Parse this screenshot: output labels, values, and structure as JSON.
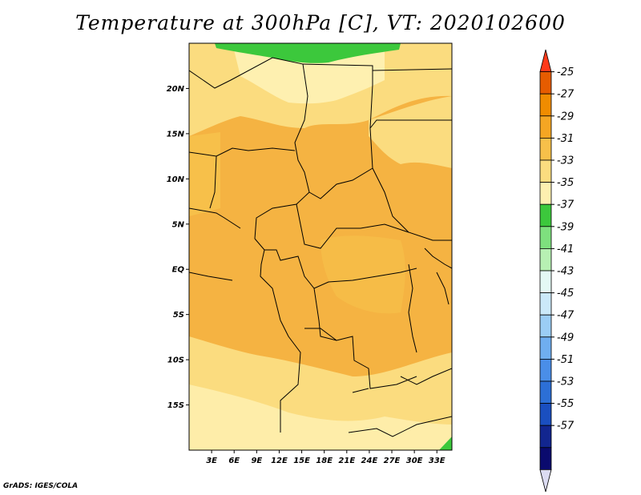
{
  "title": "Temperature at 300hPa [C], VT: 2020102600",
  "credit": "GrADS: IGES/COLA",
  "map": {
    "lon_range": [
      0,
      35
    ],
    "lat_range": [
      -20,
      25
    ],
    "lat_ticks": [
      {
        "value": 20,
        "label": "20N"
      },
      {
        "value": 15,
        "label": "15N"
      },
      {
        "value": 10,
        "label": "10N"
      },
      {
        "value": 5,
        "label": "5N"
      },
      {
        "value": 0,
        "label": "EQ"
      },
      {
        "value": -5,
        "label": "5S"
      },
      {
        "value": -10,
        "label": "10S"
      },
      {
        "value": -15,
        "label": "15S"
      }
    ],
    "lon_ticks": [
      {
        "value": 3,
        "label": "3E"
      },
      {
        "value": 6,
        "label": "6E"
      },
      {
        "value": 9,
        "label": "9E"
      },
      {
        "value": 12,
        "label": "12E"
      },
      {
        "value": 15,
        "label": "15E"
      },
      {
        "value": 18,
        "label": "18E"
      },
      {
        "value": 21,
        "label": "21E"
      },
      {
        "value": 24,
        "label": "24E"
      },
      {
        "value": 27,
        "label": "27E"
      },
      {
        "value": 30,
        "label": "30E"
      },
      {
        "value": 33,
        "label": "33E"
      }
    ]
  },
  "colorbar": {
    "levels": [
      "-25",
      "-27",
      "-29",
      "-31",
      "-33",
      "-35",
      "-37",
      "-39",
      "-41",
      "-43",
      "-45",
      "-47",
      "-49",
      "-51",
      "-53",
      "-55",
      "-57"
    ],
    "colors": [
      "#e65c00",
      "#f08c00",
      "#f5a623",
      "#f7c04a",
      "#fbdc7f",
      "#fef0b0",
      "#3cc83c",
      "#7ee07e",
      "#b7f0b3",
      "#e4f9f5",
      "#cbe9f9",
      "#9bcdf5",
      "#6faef0",
      "#4a8ee8",
      "#2c6fd6",
      "#1a4fc0",
      "#12268f",
      "#0a0a6e",
      "#d8d8f0"
    ],
    "top_color": "#ff3a1a",
    "bottom_color": "#dcdcf2"
  }
}
